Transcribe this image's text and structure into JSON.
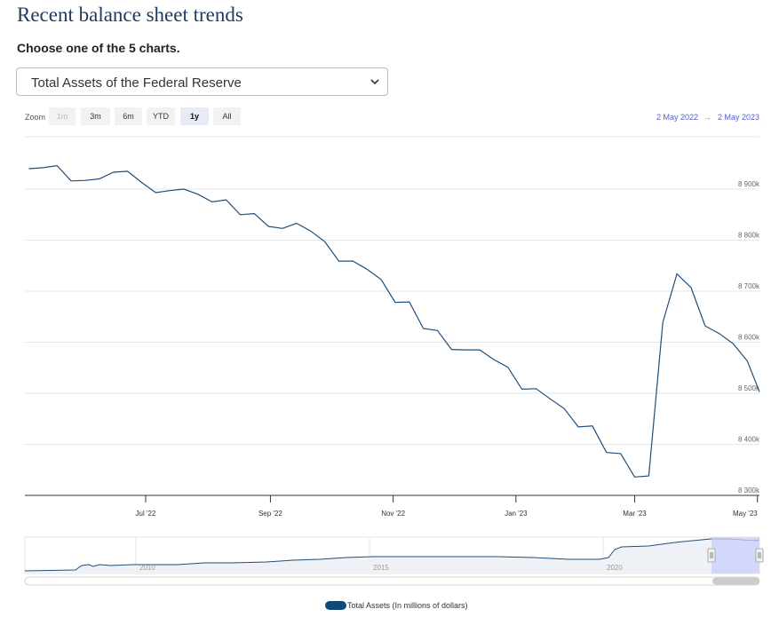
{
  "page": {
    "title": "Recent balance sheet trends",
    "subtitle": "Choose one of the 5 charts.",
    "select_value": "Total Assets of the Federal Reserve"
  },
  "zoom": {
    "label": "Zoom",
    "buttons": [
      "1m",
      "3m",
      "6m",
      "YTD",
      "1y",
      "All"
    ],
    "disabled": "1m",
    "active": "1y",
    "range_from": "2 May 2022",
    "range_sep": "→",
    "range_to": "2 May 2023"
  },
  "colors": {
    "series": "#1f4e79",
    "legend_swatch": "#0d4a7a",
    "navigator_fill": "#cfd8e3",
    "navigator_selection": "#c9cdfa",
    "range_text": "#5560cc"
  },
  "chart_data": {
    "type": "line",
    "ylim": [
      8300000,
      9000000
    ],
    "y_ticks": [
      8300000,
      8400000,
      8500000,
      8600000,
      8700000,
      8800000,
      8900000
    ],
    "y_tick_labels": [
      "8 300k",
      "8 400k",
      "8 500k",
      "8 600k",
      "8 700k",
      "8 800k",
      "8 900k"
    ],
    "x_ticks": [
      "2022-07-01",
      "2022-09-01",
      "2022-11-01",
      "2023-01-01",
      "2023-03-01",
      "2023-05-01"
    ],
    "x_tick_labels": [
      "Jul '22",
      "Sep '22",
      "Nov '22",
      "Jan '23",
      "Mar '23",
      "May '23"
    ],
    "xlim": [
      "2022-05-02",
      "2023-05-02"
    ],
    "grid": true,
    "legend_position": "bottom",
    "series": [
      {
        "name": "Total Assets (In millions of dollars)",
        "x": [
          "2022-05-04",
          "2022-05-11",
          "2022-05-18",
          "2022-05-25",
          "2022-06-01",
          "2022-06-08",
          "2022-06-15",
          "2022-06-22",
          "2022-06-29",
          "2022-07-06",
          "2022-07-13",
          "2022-07-20",
          "2022-07-27",
          "2022-08-03",
          "2022-08-10",
          "2022-08-17",
          "2022-08-24",
          "2022-08-31",
          "2022-09-07",
          "2022-09-14",
          "2022-09-21",
          "2022-09-28",
          "2022-10-05",
          "2022-10-12",
          "2022-10-19",
          "2022-10-26",
          "2022-11-02",
          "2022-11-09",
          "2022-11-16",
          "2022-11-23",
          "2022-11-30",
          "2022-12-07",
          "2022-12-14",
          "2022-12-21",
          "2022-12-28",
          "2023-01-04",
          "2023-01-11",
          "2023-01-18",
          "2023-01-25",
          "2023-02-01",
          "2023-02-08",
          "2023-02-15",
          "2023-02-22",
          "2023-03-01",
          "2023-03-08",
          "2023-03-15",
          "2023-03-22",
          "2023-03-29",
          "2023-04-05",
          "2023-04-12",
          "2023-04-19",
          "2023-04-26",
          "2023-05-02"
        ],
        "y": [
          8940000,
          8942000,
          8946000,
          8916000,
          8917000,
          8920000,
          8933000,
          8935000,
          8913000,
          8893000,
          8897000,
          8900000,
          8890000,
          8875000,
          8879000,
          8850000,
          8852000,
          8827000,
          8823000,
          8833000,
          8818000,
          8797000,
          8759000,
          8759000,
          8743000,
          8723000,
          8678000,
          8679000,
          8627000,
          8623000,
          8586000,
          8585000,
          8585000,
          8566000,
          8551000,
          8508000,
          8509000,
          8489000,
          8470000,
          8434000,
          8436000,
          8384000,
          8382000,
          8336000,
          8338000,
          8639000,
          8734000,
          8707000,
          8632000,
          8617000,
          8597000,
          8563000,
          8503000
        ]
      }
    ]
  },
  "navigator": {
    "year_labels": [
      "2010",
      "2015",
      "2020"
    ],
    "selection_handles": [
      "left-handle",
      "right-handle"
    ]
  }
}
